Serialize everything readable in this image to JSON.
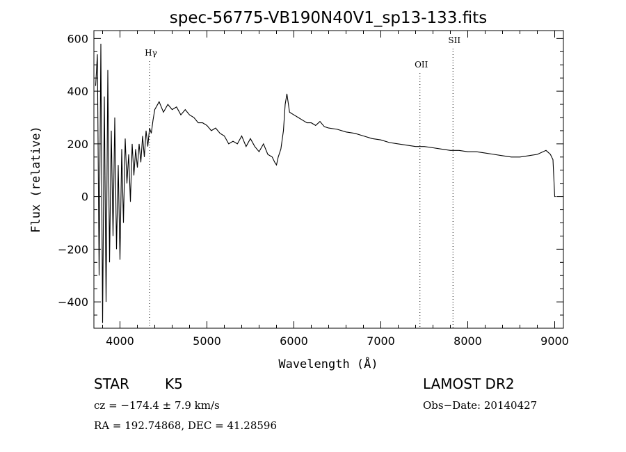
{
  "chart_data": {
    "type": "line",
    "title": "spec-56775-VB190N40V1_sp13-133.fits",
    "xlabel": "Wavelength (Å)",
    "ylabel": "Flux (relative)",
    "xlim": [
      3700,
      9100
    ],
    "ylim": [
      -500,
      630
    ],
    "x_ticks": [
      4000,
      5000,
      6000,
      7000,
      8000,
      9000
    ],
    "y_ticks": [
      -400,
      -200,
      0,
      200,
      400,
      600
    ],
    "x_tick_labels": [
      "4000",
      "5000",
      "6000",
      "7000",
      "8000",
      "9000"
    ],
    "y_tick_labels": [
      "−400",
      "−200",
      "0",
      "200",
      "400",
      "600"
    ],
    "grid": false,
    "line_color": "#000000",
    "markers": [
      {
        "label": "Hγ",
        "wavelength": 4340
      },
      {
        "label": "OII",
        "wavelength": 7450
      },
      {
        "label": "SII",
        "wavelength": 7830
      }
    ],
    "series": [
      {
        "x": [
          3720,
          3740,
          3760,
          3780,
          3800,
          3820,
          3840,
          3860,
          3880,
          3900,
          3920,
          3940,
          3960,
          3980,
          4000,
          4020,
          4040,
          4060,
          4080,
          4100,
          4120,
          4140,
          4160,
          4180,
          4200,
          4220,
          4240,
          4260,
          4280,
          4300,
          4320,
          4340,
          4360,
          4380,
          4400,
          4450,
          4500,
          4550,
          4600,
          4650,
          4700,
          4750,
          4800,
          4850,
          4900,
          4950,
          5000,
          5050,
          5100,
          5150,
          5200,
          5250,
          5300,
          5350,
          5400,
          5450,
          5500,
          5550,
          5600,
          5650,
          5700,
          5750,
          5780,
          5800,
          5820,
          5850,
          5880,
          5900,
          5920,
          5950,
          6000,
          6050,
          6100,
          6150,
          6200,
          6250,
          6300,
          6350,
          6400,
          6500,
          6600,
          6700,
          6800,
          6900,
          7000,
          7100,
          7200,
          7300,
          7400,
          7500,
          7600,
          7700,
          7800,
          7900,
          8000,
          8100,
          8200,
          8300,
          8400,
          8500,
          8600,
          8700,
          8800,
          8900,
          8950,
          8980,
          9000,
          9010
        ],
        "y": [
          420,
          540,
          -300,
          580,
          -480,
          380,
          -400,
          480,
          -250,
          250,
          -150,
          300,
          -200,
          120,
          -240,
          180,
          -100,
          220,
          50,
          160,
          -20,
          200,
          80,
          180,
          110,
          200,
          130,
          230,
          150,
          250,
          190,
          260,
          240,
          290,
          330,
          360,
          320,
          350,
          330,
          340,
          310,
          330,
          310,
          300,
          280,
          280,
          270,
          250,
          260,
          240,
          230,
          200,
          210,
          200,
          230,
          190,
          220,
          190,
          170,
          200,
          160,
          150,
          130,
          120,
          150,
          180,
          250,
          350,
          390,
          320,
          310,
          300,
          290,
          280,
          280,
          270,
          285,
          265,
          260,
          255,
          245,
          240,
          230,
          220,
          215,
          205,
          200,
          195,
          190,
          190,
          185,
          180,
          175,
          175,
          170,
          170,
          165,
          160,
          155,
          150,
          150,
          155,
          160,
          175,
          160,
          140,
          0,
          0
        ]
      }
    ]
  },
  "info": {
    "class_label": "STAR",
    "subclass_label": "K5",
    "survey_label": "LAMOST DR2",
    "cz_text": "cz = −174.4 ± 7.9 km/s",
    "obs_date_text": "Obs−Date: 20140427",
    "coords_text": "RA = 192.74868, DEC =  41.28596"
  }
}
